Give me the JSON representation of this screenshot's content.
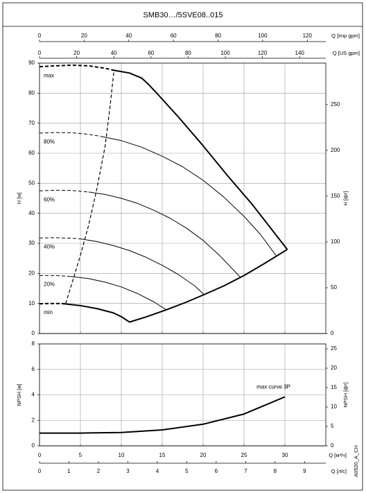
{
  "chart_data": [
    {
      "type": "line",
      "title": "SMB30…/5SVE08..015",
      "xlim": [
        0,
        35
      ],
      "xticks": [
        0,
        5,
        10,
        15,
        20,
        25,
        30
      ],
      "x2label": "Q [imp gpm]",
      "x2lim": [
        0,
        128.3
      ],
      "x2ticks": [
        0,
        20,
        40,
        60,
        80,
        100,
        120
      ],
      "x3label": "Q [US gpm]",
      "x3lim": [
        0,
        154.1
      ],
      "x3ticks": [
        0,
        20,
        40,
        60,
        80,
        100,
        120,
        140
      ],
      "ylabel": "H [м]",
      "ylim": [
        0,
        90
      ],
      "yticks": [
        0,
        10,
        20,
        30,
        40,
        50,
        60,
        70,
        80,
        90
      ],
      "y2label": "H [фт]",
      "y2lim": [
        0,
        295.3
      ],
      "y2ticks": [
        0,
        50,
        100,
        150,
        200,
        250
      ],
      "grid": true,
      "series": [
        {
          "name": "max",
          "color": "#000000",
          "width": 2,
          "x_dashed": [
            0,
            2,
            4,
            6,
            8,
            9.1
          ],
          "values_dashed": [
            88.8,
            89.1,
            89.3,
            89.1,
            88.3,
            87.6
          ],
          "x": [
            9.1,
            11,
            12.5,
            13.3,
            14.5,
            17,
            20,
            23,
            26,
            29,
            30.3
          ],
          "values": [
            87.6,
            86.7,
            85,
            83,
            79.5,
            72,
            62.5,
            52.5,
            43,
            32.5,
            28
          ]
        },
        {
          "name": "80%",
          "color": "#000000",
          "width": 1,
          "x_dashed": [
            0,
            2,
            4,
            6,
            7.5
          ],
          "values_dashed": [
            66.7,
            66.9,
            66.8,
            66.3,
            65.6
          ],
          "x": [
            7.5,
            10,
            12.5,
            15,
            17.5,
            20,
            22.5,
            25,
            27,
            28.9
          ],
          "values": [
            65.6,
            64.2,
            62,
            59,
            55.5,
            51,
            45.5,
            39,
            33,
            26
          ]
        },
        {
          "name": "60%",
          "color": "#000000",
          "width": 1,
          "x_dashed": [
            0,
            2,
            4,
            6
          ],
          "values_dashed": [
            47.5,
            47.7,
            47.6,
            47.1
          ],
          "x": [
            6,
            8,
            10,
            12,
            14,
            16,
            18,
            20,
            22,
            24.5
          ],
          "values": [
            47.1,
            46.3,
            45,
            43.3,
            41,
            38.3,
            35,
            31,
            26,
            18.9
          ]
        },
        {
          "name": "40%",
          "color": "#000000",
          "width": 1,
          "x_dashed": [
            0,
            2,
            4,
            5
          ],
          "values_dashed": [
            31.8,
            31.9,
            31.7,
            31.5
          ],
          "x": [
            5,
            7,
            9,
            11,
            13,
            15,
            17,
            19,
            20.1
          ],
          "values": [
            31.5,
            30.6,
            29.3,
            27.6,
            25.4,
            22.7,
            19.6,
            15.8,
            13
          ]
        },
        {
          "name": "20%",
          "color": "#000000",
          "width": 1,
          "x_dashed": [
            0,
            2,
            3.8
          ],
          "values_dashed": [
            19.3,
            19.3,
            19
          ],
          "x": [
            3.8,
            6,
            8,
            10,
            12,
            14,
            15.5
          ],
          "values": [
            19,
            18.3,
            17.1,
            15.5,
            13.3,
            10.5,
            7.9
          ]
        },
        {
          "name": "min",
          "color": "#000000",
          "width": 2,
          "x_dashed": [
            0,
            1.5,
            2.7
          ],
          "values_dashed": [
            9.9,
            10,
            10
          ],
          "x": [
            2.7,
            5,
            7,
            9,
            10,
            11
          ],
          "values": [
            10,
            9.3,
            8.3,
            6.9,
            5.6,
            3.8
          ]
        },
        {
          "color": "#000000",
          "width": 2,
          "x": [
            11,
            13,
            15.5,
            18,
            20,
            22.5,
            25,
            27.5,
            30.3
          ],
          "values": [
            3.8,
            5.5,
            7.9,
            10.5,
            12.8,
            15.8,
            19.3,
            23.3,
            28
          ]
        },
        {
          "color": "#000000",
          "width": 1.2,
          "x_dashed": [
            3.2,
            4,
            5,
            6,
            7,
            8,
            8.6,
            9.1
          ],
          "values_dashed": [
            10,
            17,
            26,
            36,
            48,
            62,
            75,
            87.6
          ]
        }
      ]
    },
    {
      "type": "line",
      "xlim": [
        0,
        35
      ],
      "xticks": [
        0,
        5,
        10,
        15,
        20,
        25,
        30
      ],
      "xlabel": "Q [м³/ч]",
      "x2label": "Q [л/с]",
      "x2lim": [
        0,
        9.722
      ],
      "x2ticks": [
        0,
        1,
        2,
        3,
        4,
        5,
        6,
        7,
        8,
        9
      ],
      "ylabel": "NPSH [м]",
      "ylim": [
        0,
        8
      ],
      "yticks": [
        0,
        2,
        4,
        6,
        8
      ],
      "y2label": "NPSH [фт]",
      "y2lim": [
        0,
        26.25
      ],
      "y2ticks": [
        0,
        5,
        10,
        15,
        20,
        25
      ],
      "grid": true,
      "note": "A0520_A_CH",
      "series": [
        {
          "name": "max curve 3P",
          "color": "#000000",
          "width": 2,
          "x": [
            0,
            5,
            10,
            15,
            20,
            25,
            30
          ],
          "values": [
            1,
            1,
            1.05,
            1.25,
            1.7,
            2.5,
            3.85
          ]
        }
      ]
    }
  ]
}
